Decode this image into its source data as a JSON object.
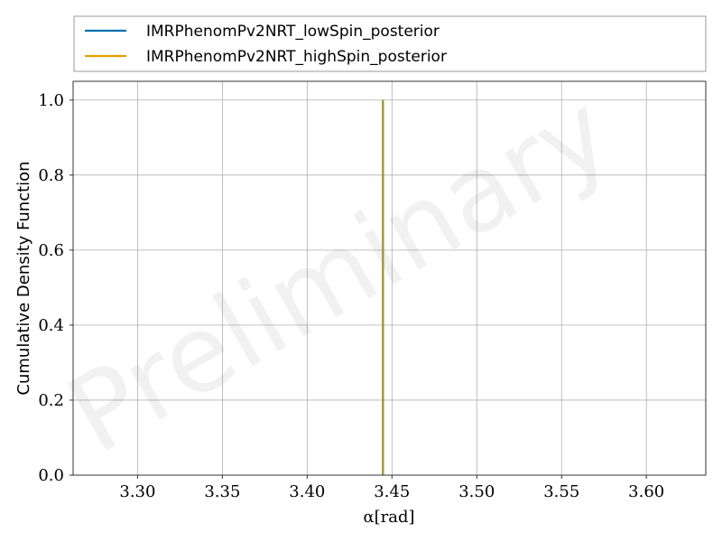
{
  "watermark": "Preliminary",
  "chart_data": {
    "type": "line",
    "title": "",
    "xlabel": "α[rad]",
    "ylabel": "Cumulative Density Function",
    "xlim": [
      3.262,
      3.635
    ],
    "ylim": [
      0.0,
      1.05
    ],
    "xticks": [
      3.3,
      3.35,
      3.4,
      3.45,
      3.5,
      3.55,
      3.6
    ],
    "xtick_labels": [
      "3.30",
      "3.35",
      "3.40",
      "3.45",
      "3.50",
      "3.55",
      "3.60"
    ],
    "yticks": [
      0.0,
      0.2,
      0.4,
      0.6,
      0.8,
      1.0
    ],
    "ytick_labels": [
      "0.0",
      "0.2",
      "0.4",
      "0.6",
      "0.8",
      "1.0"
    ],
    "grid": true,
    "legend_position": "top, above plot",
    "series": [
      {
        "name": "IMRPhenomPv2NRT_lowSpin_posterior",
        "color": "#0072b2",
        "x": [
          3.4447,
          3.4447
        ],
        "y": [
          0.0,
          1.0
        ]
      },
      {
        "name": "IMRPhenomPv2NRT_highSpin_posterior",
        "color": "#e69f00",
        "x": [
          3.4447,
          3.4447
        ],
        "y": [
          0.0,
          1.0
        ]
      }
    ]
  }
}
